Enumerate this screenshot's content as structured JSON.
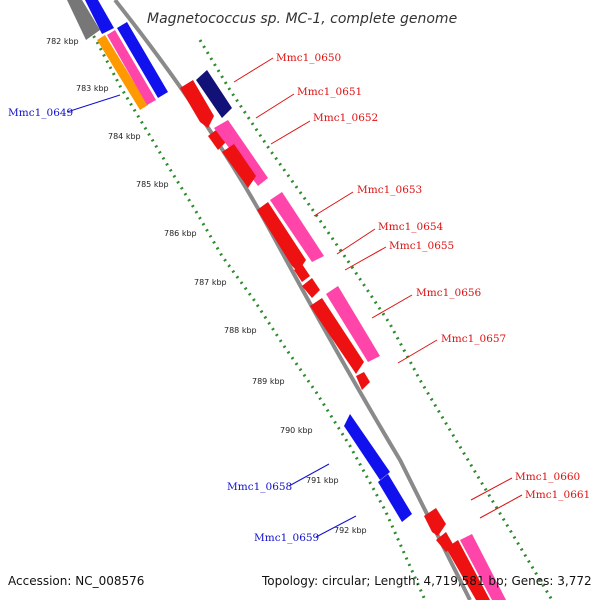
{
  "title": "Magnetococcus sp. MC-1, complete genome",
  "footer": {
    "accession": "Accession: NC_008576",
    "summary": "Topology: circular; Length: 4,719,581 bp; Genes: 3,772"
  },
  "colors": {
    "backbone": "#8a8a8a",
    "ruler_dots": "#2e8b2e",
    "label_red": "#dd1111",
    "label_blue": "#1111cc",
    "cds_red": "#ee1111",
    "cds_magenta": "#ff44aa",
    "cds_blue": "#1111ee",
    "cds_navy": "#111177",
    "cds_orange": "#ff9900",
    "cds_gray": "#777777"
  },
  "ticks": [
    "782 kbp",
    "783 kbp",
    "784 kbp",
    "785 kbp",
    "786 kbp",
    "787 kbp",
    "788 kbp",
    "789 kbp",
    "790 kbp",
    "791 kbp",
    "792 kbp"
  ],
  "genes": [
    {
      "label": "Mmc1_0649",
      "strand": "-"
    },
    {
      "label": "Mmc1_0650",
      "strand": "+"
    },
    {
      "label": "Mmc1_0651",
      "strand": "+"
    },
    {
      "label": "Mmc1_0652",
      "strand": "+"
    },
    {
      "label": "Mmc1_0653",
      "strand": "+"
    },
    {
      "label": "Mmc1_0654",
      "strand": "+"
    },
    {
      "label": "Mmc1_0655",
      "strand": "+"
    },
    {
      "label": "Mmc1_0656",
      "strand": "+"
    },
    {
      "label": "Mmc1_0657",
      "strand": "+"
    },
    {
      "label": "Mmc1_0658",
      "strand": "-"
    },
    {
      "label": "Mmc1_0659",
      "strand": "-"
    },
    {
      "label": "Mmc1_0660",
      "strand": "+"
    },
    {
      "label": "Mmc1_0661",
      "strand": "+"
    }
  ]
}
